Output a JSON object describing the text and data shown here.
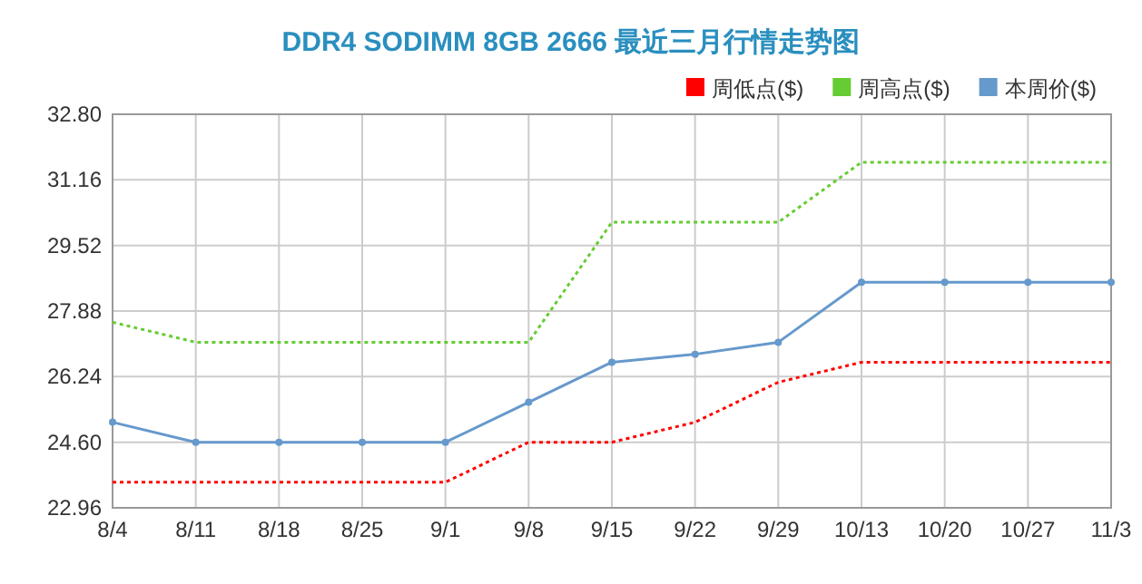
{
  "chart_data": {
    "type": "line",
    "title": "DDR4 SODIMM 8GB 2666 最近三月行情走势图",
    "categories": [
      "8/4",
      "8/11",
      "8/18",
      "8/25",
      "9/1",
      "9/8",
      "9/15",
      "9/22",
      "9/29",
      "10/13",
      "10/20",
      "10/27",
      "11/3"
    ],
    "series": [
      {
        "name": "周低点($)",
        "color": "#ff0000",
        "line_style": "dotted",
        "marker": "none",
        "values": [
          23.6,
          23.6,
          23.6,
          23.6,
          23.6,
          24.6,
          24.6,
          25.1,
          26.1,
          26.6,
          26.6,
          26.6,
          26.6
        ]
      },
      {
        "name": "周高点($)",
        "color": "#66cc33",
        "line_style": "dotted",
        "marker": "none",
        "values": [
          27.6,
          27.1,
          27.1,
          27.1,
          27.1,
          27.1,
          30.1,
          30.1,
          30.1,
          31.6,
          31.6,
          31.6,
          31.6
        ]
      },
      {
        "name": "本周价($)",
        "color": "#6699cc",
        "line_style": "solid",
        "marker": "circle",
        "values": [
          25.1,
          24.6,
          24.6,
          24.6,
          24.6,
          25.6,
          26.6,
          26.8,
          27.1,
          28.6,
          28.6,
          28.6,
          28.6
        ]
      }
    ],
    "ylim": [
      22.96,
      32.8
    ],
    "yticks": [
      {
        "value": 22.96,
        "label": "22.96"
      },
      {
        "value": 24.6,
        "label": "24.60"
      },
      {
        "value": 26.24,
        "label": "26.24"
      },
      {
        "value": 27.88,
        "label": "27.88"
      },
      {
        "value": 29.52,
        "label": "29.52"
      },
      {
        "value": 31.16,
        "label": "31.16"
      },
      {
        "value": 32.8,
        "label": "32.80"
      }
    ],
    "grid": true,
    "legend": "top right"
  }
}
